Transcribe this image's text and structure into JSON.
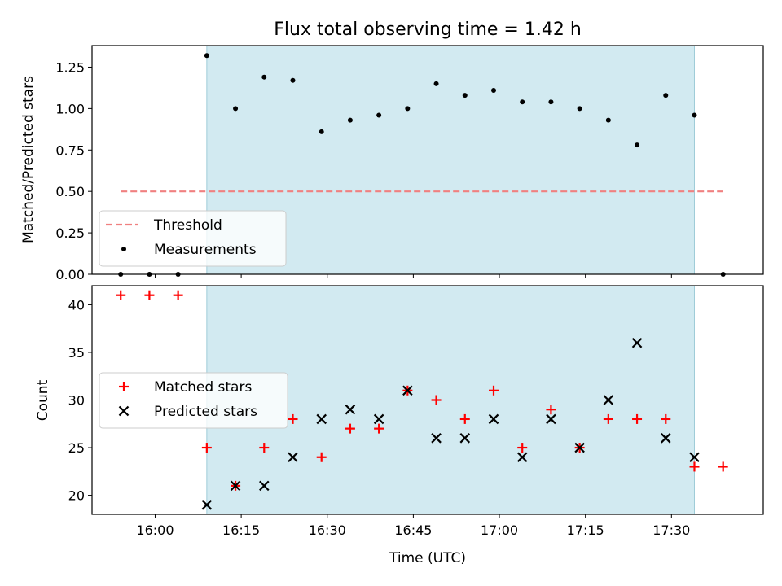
{
  "chart_data": [
    {
      "type": "scatter",
      "title": "Flux total observing time = 1.42 h",
      "xlabel": "",
      "ylabel": "Matched/Predicted stars",
      "ylim": [
        0,
        1.38
      ],
      "yticks": [
        "0.00",
        "0.25",
        "0.50",
        "0.75",
        "1.00",
        "1.25"
      ],
      "ytick_values": [
        0,
        0.25,
        0.5,
        0.75,
        1.0,
        1.25
      ],
      "xlim": [
        "15:49",
        "17:46"
      ],
      "shaded_interval": [
        "16:09",
        "17:34"
      ],
      "shade_color": "#add8e6",
      "legend_location": "lower-left",
      "threshold": {
        "name": "Threshold",
        "value": 0.5,
        "x_start": "15:54",
        "x_end": "17:39",
        "color": "#f08080",
        "style": "dashed"
      },
      "series": [
        {
          "name": "Measurements",
          "marker": "dot",
          "color": "#000000",
          "x": [
            "15:54",
            "15:59",
            "16:04",
            "16:09",
            "16:14",
            "16:19",
            "16:24",
            "16:29",
            "16:34",
            "16:39",
            "16:44",
            "16:49",
            "16:54",
            "16:59",
            "17:04",
            "17:09",
            "17:14",
            "17:19",
            "17:24",
            "17:29",
            "17:34",
            "17:39"
          ],
          "y": [
            0,
            0,
            0,
            1.32,
            1.0,
            1.19,
            1.17,
            0.86,
            0.93,
            0.96,
            1.0,
            1.15,
            1.08,
            1.11,
            1.04,
            1.04,
            1.0,
            0.93,
            0.78,
            1.08,
            0.96,
            0
          ]
        }
      ]
    },
    {
      "type": "scatter",
      "title": "",
      "xlabel": "Time (UTC)",
      "ylabel": "Count",
      "ylim": [
        18,
        42
      ],
      "yticks": [
        "20",
        "25",
        "30",
        "35",
        "40"
      ],
      "ytick_values": [
        20,
        25,
        30,
        35,
        40
      ],
      "xlim": [
        "15:49",
        "17:46"
      ],
      "xticks": [
        "16:00",
        "16:15",
        "16:30",
        "16:45",
        "17:00",
        "17:15",
        "17:30"
      ],
      "shaded_interval": [
        "16:09",
        "17:34"
      ],
      "shade_color": "#add8e6",
      "legend_location": "center-left",
      "series": [
        {
          "name": "Matched stars",
          "marker": "plus",
          "color": "#ff0000",
          "x": [
            "15:54",
            "15:59",
            "16:04",
            "16:09",
            "16:14",
            "16:19",
            "16:24",
            "16:29",
            "16:34",
            "16:39",
            "16:44",
            "16:49",
            "16:54",
            "16:59",
            "17:04",
            "17:09",
            "17:14",
            "17:19",
            "17:24",
            "17:29",
            "17:34",
            "17:39"
          ],
          "y": [
            41,
            41,
            41,
            25,
            21,
            25,
            28,
            24,
            27,
            27,
            31,
            30,
            28,
            31,
            25,
            29,
            25,
            28,
            28,
            28,
            23,
            23
          ]
        },
        {
          "name": "Predicted stars",
          "marker": "x",
          "color": "#000000",
          "x": [
            "16:09",
            "16:14",
            "16:19",
            "16:24",
            "16:29",
            "16:34",
            "16:39",
            "16:44",
            "16:49",
            "16:54",
            "16:59",
            "17:04",
            "17:09",
            "17:14",
            "17:19",
            "17:24",
            "17:29",
            "17:34"
          ],
          "y": [
            19,
            21,
            21,
            24,
            28,
            29,
            28,
            31,
            26,
            26,
            28,
            24,
            28,
            25,
            30,
            36,
            26,
            24
          ]
        }
      ]
    }
  ]
}
